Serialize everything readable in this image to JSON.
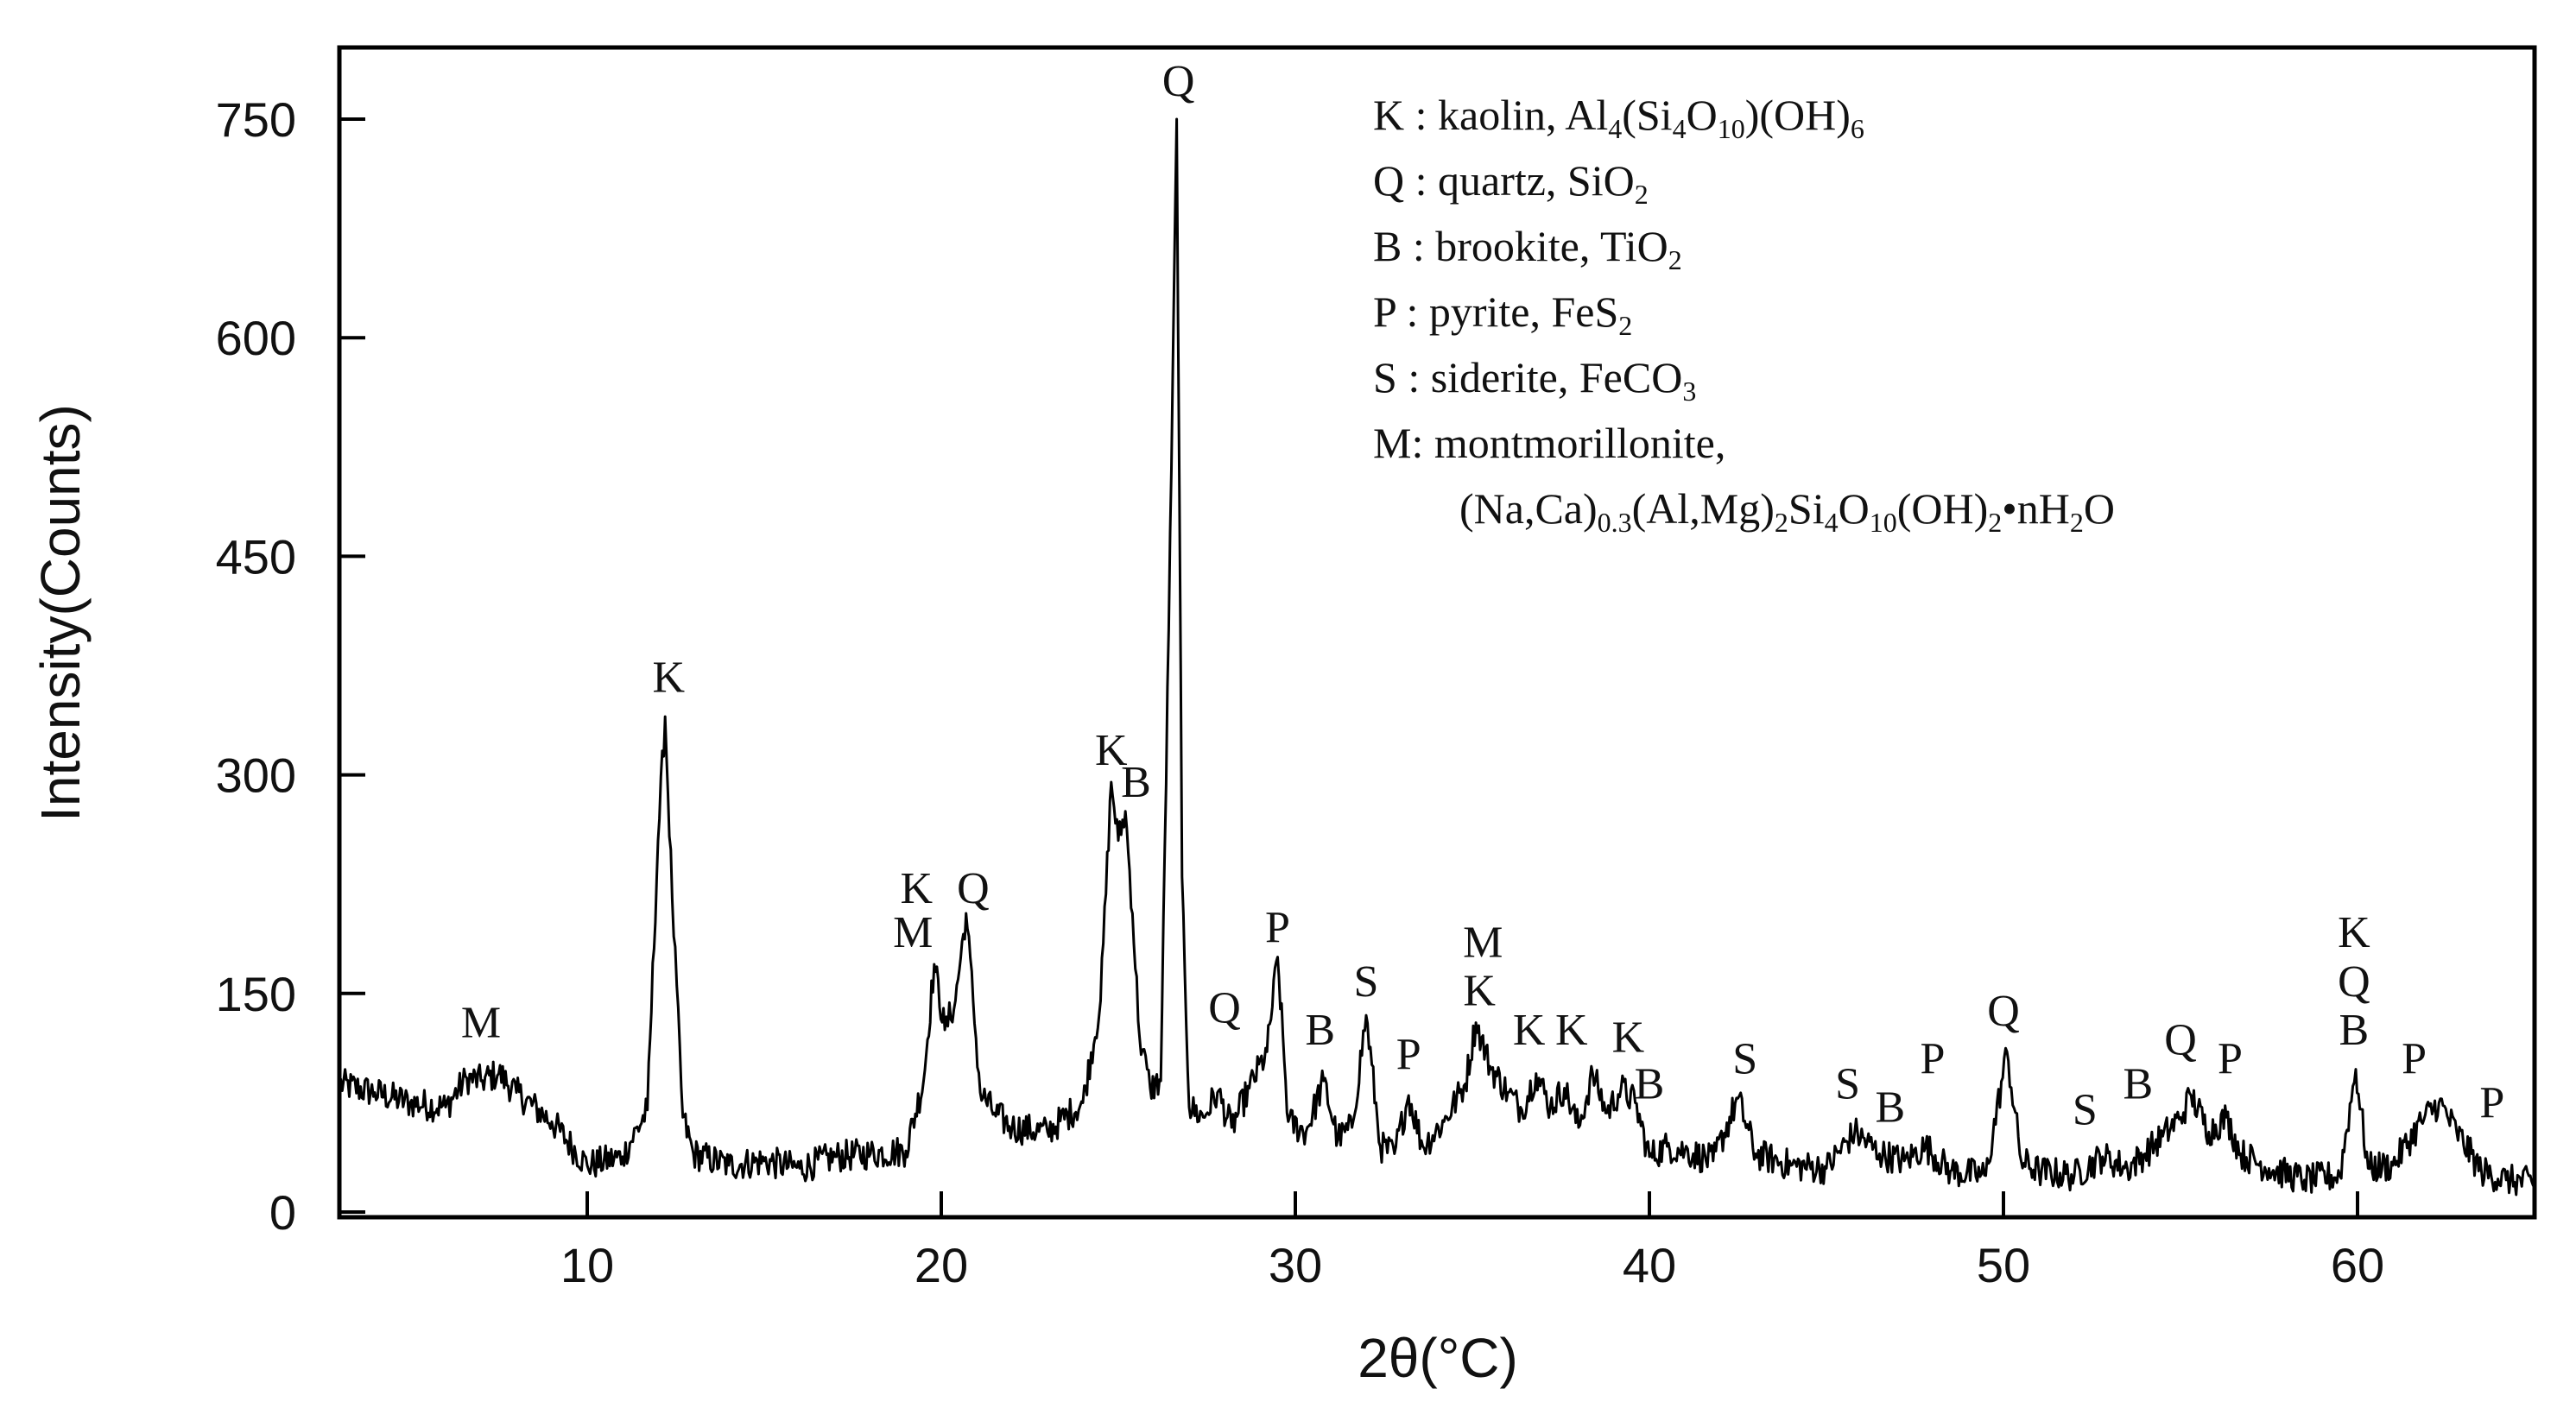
{
  "chart_data": {
    "type": "line",
    "title": "",
    "xlabel": "2θ(°C)",
    "ylabel": "Intensity(Counts)",
    "xlim": [
      3,
      65
    ],
    "ylim": [
      0,
      800
    ],
    "xticks": [
      10,
      20,
      30,
      40,
      50,
      60
    ],
    "yticks": [
      0,
      150,
      300,
      450,
      600,
      750
    ],
    "grid": false,
    "legend_position": "top-right",
    "series": [
      {
        "color": "#000000",
        "x": [
          3,
          4,
          5,
          6,
          6.6,
          7,
          7.5,
          8,
          9,
          10,
          11,
          11.7,
          12.0,
          12.2,
          12.4,
          12.7,
          13,
          14,
          15,
          16,
          17,
          18,
          19,
          19.5,
          19.8,
          20.1,
          20.4,
          20.7,
          20.9,
          21.1,
          21.5,
          22,
          23,
          24,
          24.5,
          24.8,
          25.0,
          25.2,
          25.4,
          25.6,
          25.9,
          26.2,
          26.5,
          26.65,
          26.8,
          27.0,
          27.4,
          27.8,
          28.2,
          28.7,
          29.2,
          29.5,
          29.8,
          30.3,
          30.8,
          31.2,
          31.6,
          32.0,
          32.4,
          32.8,
          33.2,
          33.6,
          34.2,
          34.8,
          35.1,
          35.5,
          36.0,
          36.4,
          36.8,
          37.2,
          37.6,
          38.0,
          38.4,
          38.8,
          39.2,
          39.6,
          40.0,
          40.5,
          41.0,
          41.8,
          42.5,
          43.0,
          44.0,
          45.0,
          45.8,
          46.5,
          47.2,
          47.8,
          48.5,
          49.5,
          50.1,
          50.5,
          51.0,
          52.0,
          52.8,
          53.5,
          54.0,
          54.5,
          55.0,
          55.3,
          55.8,
          56.3,
          56.7,
          57.5,
          58.5,
          59.5,
          59.95,
          60.3,
          61.0,
          61.8,
          62.3,
          62.8,
          63.5,
          64.2,
          65
        ],
        "y": [
          88,
          82,
          75,
          72,
          92,
          90,
          95,
          82,
          62,
          32,
          38,
          70,
          255,
          340,
          215,
          65,
          40,
          32,
          35,
          30,
          38,
          40,
          42,
          90,
          170,
          125,
          145,
          205,
          145,
          82,
          68,
          58,
          55,
          75,
          145,
          295,
          255,
          275,
          205,
          120,
          85,
          90,
          510,
          750,
          230,
          72,
          65,
          82,
          58,
          85,
          110,
          175,
          62,
          55,
          90,
          50,
          58,
          135,
          45,
          40,
          80,
          45,
          62,
          88,
          130,
          100,
          82,
          70,
          95,
          72,
          85,
          58,
          95,
          68,
          85,
          75,
          38,
          45,
          42,
          35,
          78,
          40,
          32,
          30,
          55,
          40,
          35,
          45,
          28,
          25,
          110,
          35,
          28,
          25,
          38,
          30,
          40,
          52,
          65,
          80,
          55,
          65,
          40,
          30,
          22,
          25,
          98,
          30,
          32,
          62,
          75,
          55,
          28,
          22,
          20
        ]
      }
    ],
    "peak_labels": [
      {
        "text": "M",
        "x": 7.0,
        "y": 120
      },
      {
        "text": "K",
        "x": 12.3,
        "y": 357
      },
      {
        "text": "K",
        "x": 19.3,
        "y": 212
      },
      {
        "text": "Q",
        "x": 20.9,
        "y": 212
      },
      {
        "text": "M",
        "x": 19.2,
        "y": 182
      },
      {
        "text": "K",
        "x": 24.8,
        "y": 307
      },
      {
        "text": "B",
        "x": 25.5,
        "y": 285
      },
      {
        "text": "Q",
        "x": 26.7,
        "y": 766
      },
      {
        "text": "Q",
        "x": 28.0,
        "y": 130
      },
      {
        "text": "P",
        "x": 29.5,
        "y": 185
      },
      {
        "text": "B",
        "x": 30.7,
        "y": 115
      },
      {
        "text": "S",
        "x": 32.0,
        "y": 148
      },
      {
        "text": "P",
        "x": 33.2,
        "y": 98
      },
      {
        "text": "M",
        "x": 35.3,
        "y": 175
      },
      {
        "text": "K",
        "x": 35.2,
        "y": 142
      },
      {
        "text": "K",
        "x": 36.6,
        "y": 115
      },
      {
        "text": "K",
        "x": 37.8,
        "y": 115
      },
      {
        "text": "K",
        "x": 39.4,
        "y": 110
      },
      {
        "text": "B",
        "x": 40.0,
        "y": 78
      },
      {
        "text": "S",
        "x": 42.7,
        "y": 95
      },
      {
        "text": "S",
        "x": 45.6,
        "y": 78
      },
      {
        "text": "B",
        "x": 46.8,
        "y": 62
      },
      {
        "text": "P",
        "x": 48.0,
        "y": 95
      },
      {
        "text": "Q",
        "x": 50.0,
        "y": 128
      },
      {
        "text": "S",
        "x": 52.3,
        "y": 60
      },
      {
        "text": "B",
        "x": 53.8,
        "y": 78
      },
      {
        "text": "Q",
        "x": 55.0,
        "y": 108
      },
      {
        "text": "P",
        "x": 56.4,
        "y": 95
      },
      {
        "text": "B",
        "x": 59.9,
        "y": 115
      },
      {
        "text": "Q",
        "x": 59.9,
        "y": 148
      },
      {
        "text": "K",
        "x": 59.9,
        "y": 182
      },
      {
        "text": "P",
        "x": 61.6,
        "y": 95
      },
      {
        "text": "P",
        "x": 63.8,
        "y": 65
      }
    ],
    "legend": [
      {
        "key": "K",
        "text": " : kaolin, Al",
        "sub1": "4",
        "mid1": "(Si",
        "sub2": "4",
        "mid2": "O",
        "sub3": "10",
        "mid3": ")(OH)",
        "sub4": "6"
      },
      {
        "key": "Q",
        "text": " : quartz, SiO",
        "sub1": "2"
      },
      {
        "key": "B",
        "text": " : brookite, TiO",
        "sub1": "2"
      },
      {
        "key": "P",
        "text": " : pyrite, FeS",
        "sub1": "2"
      },
      {
        "key": "S",
        "text": " : siderite, FeCO",
        "sub1": "3"
      },
      {
        "key": "M",
        "text": ": montmorillonite,"
      },
      {
        "key": "",
        "text": "(Na,Ca)",
        "sub1": "0.3",
        "mid1": "(Al,Mg)",
        "sub2": "2",
        "mid2": "Si",
        "sub3": "4",
        "mid3": "O",
        "sub4": "10",
        "mid4": "(OH)",
        "sub5": "2",
        "mid5": "•nH",
        "sub6": "2",
        "mid6": "O"
      }
    ]
  }
}
